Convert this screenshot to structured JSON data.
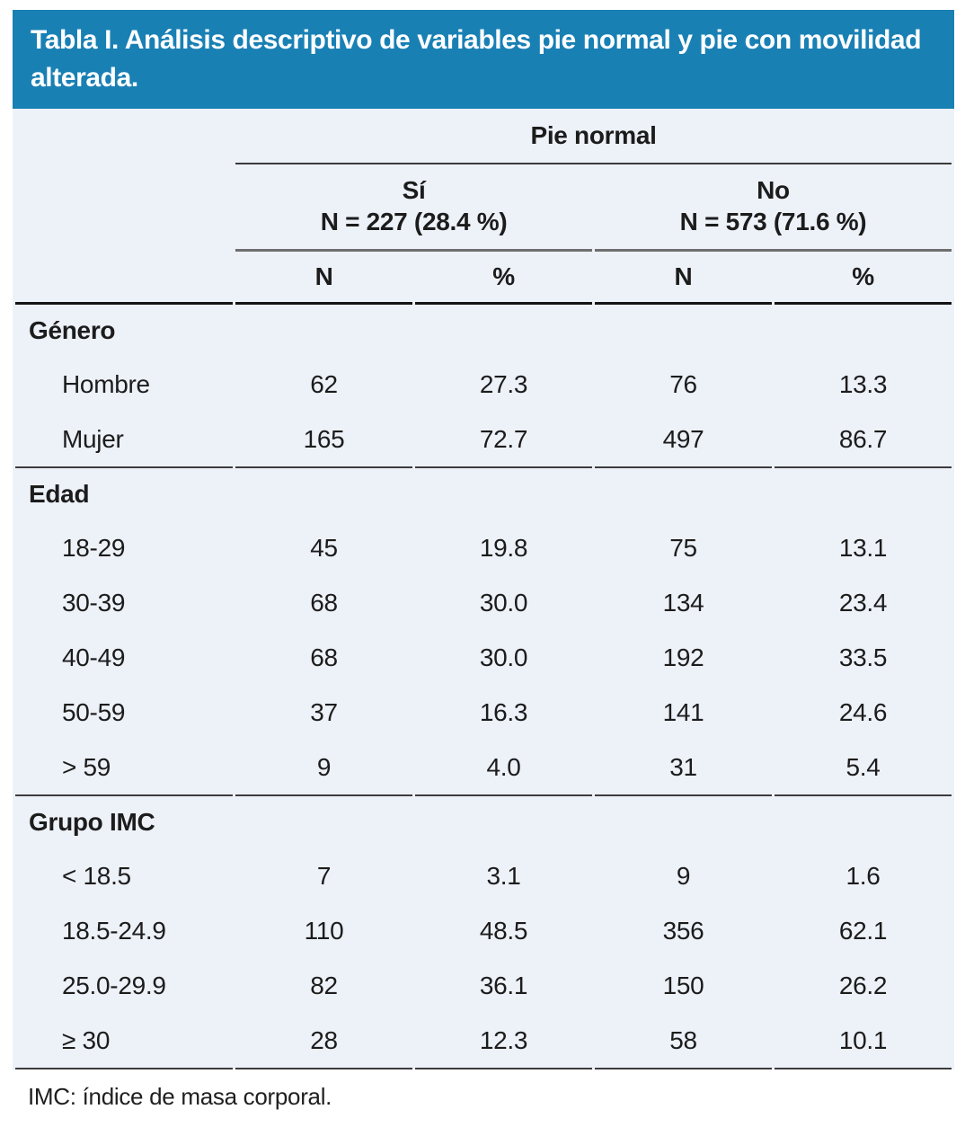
{
  "title": "Tabla I. Análisis descriptivo de variables pie normal y pie con movilidad alterada.",
  "table": {
    "group_header": "Pie normal",
    "subgroups": [
      {
        "label": "Sí",
        "n_line": "N = 227 (28.4 %)"
      },
      {
        "label": "No",
        "n_line": "N = 573 (71.6 %)"
      }
    ],
    "col_headers": [
      "N",
      "%",
      "N",
      "%"
    ],
    "sections": [
      {
        "name": "Género",
        "rows": [
          {
            "label": "Hombre",
            "values": [
              "62",
              "27.3",
              "76",
              "13.3"
            ]
          },
          {
            "label": "Mujer",
            "values": [
              "165",
              "72.7",
              "497",
              "86.7"
            ]
          }
        ]
      },
      {
        "name": "Edad",
        "rows": [
          {
            "label": "18-29",
            "values": [
              "45",
              "19.8",
              "75",
              "13.1"
            ]
          },
          {
            "label": "30-39",
            "values": [
              "68",
              "30.0",
              "134",
              "23.4"
            ]
          },
          {
            "label": "40-49",
            "values": [
              "68",
              "30.0",
              "192",
              "33.5"
            ]
          },
          {
            "label": "50-59",
            "values": [
              "37",
              "16.3",
              "141",
              "24.6"
            ]
          },
          {
            "label": "> 59",
            "values": [
              "9",
              "4.0",
              "31",
              "5.4"
            ]
          }
        ]
      },
      {
        "name": "Grupo IMC",
        "rows": [
          {
            "label": "< 18.5",
            "values": [
              "7",
              "3.1",
              "9",
              "1.6"
            ]
          },
          {
            "label": "18.5-24.9",
            "values": [
              "110",
              "48.5",
              "356",
              "62.1"
            ]
          },
          {
            "label": "25.0-29.9",
            "values": [
              "82",
              "36.1",
              "150",
              "26.2"
            ]
          },
          {
            "label": "≥ 30",
            "values": [
              "28",
              "12.3",
              "58",
              "10.1"
            ]
          }
        ]
      }
    ]
  },
  "footnote": "IMC: índice de masa corporal.",
  "colors": {
    "header_bg": "#1980b4",
    "header_text": "#ffffff",
    "table_bg": "#edf1f8",
    "text": "#1c1c1c"
  }
}
